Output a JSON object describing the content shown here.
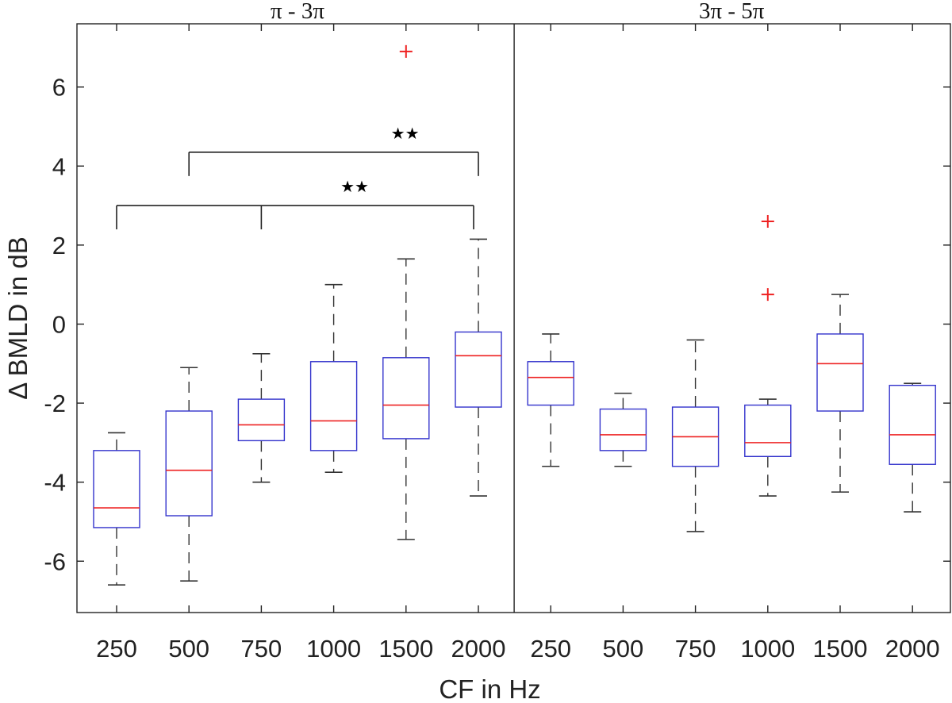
{
  "chart_data": {
    "type": "box",
    "xlabel": "CF in Hz",
    "ylabel": "Δ BMLD in dB",
    "ylim": [
      -7.3,
      7.6
    ],
    "yticks": [
      6,
      4,
      2,
      0,
      -2,
      -4,
      -6
    ],
    "ytick_labels": [
      "6",
      "4",
      "2",
      "0",
      "-2",
      "-4",
      "-6"
    ],
    "grid": false,
    "colors": {
      "box": "#3333cc",
      "median": "#ee2222",
      "whisker": "#333333",
      "outlier": "#ee2222",
      "axis": "#222222"
    },
    "groups": [
      {
        "title": "π - 3π",
        "categories": [
          "250",
          "500",
          "750",
          "1000",
          "1500",
          "2000"
        ],
        "boxes": [
          {
            "whisker_low": -6.6,
            "q1": -5.15,
            "median": -4.65,
            "q3": -3.2,
            "whisker_high": -2.75,
            "outliers": []
          },
          {
            "whisker_low": -6.5,
            "q1": -4.85,
            "median": -3.7,
            "q3": -2.2,
            "whisker_high": -1.1,
            "outliers": []
          },
          {
            "whisker_low": -4.0,
            "q1": -2.95,
            "median": -2.55,
            "q3": -1.9,
            "whisker_high": -0.75,
            "outliers": []
          },
          {
            "whisker_low": -3.75,
            "q1": -3.2,
            "median": -2.45,
            "q3": -0.95,
            "whisker_high": 1.0,
            "outliers": []
          },
          {
            "whisker_low": -5.45,
            "q1": -2.9,
            "median": -2.05,
            "q3": -0.85,
            "whisker_high": 1.65,
            "outliers": [
              6.9
            ]
          },
          {
            "whisker_low": -4.35,
            "q1": -2.1,
            "median": -0.8,
            "q3": -0.2,
            "whisker_high": 2.15,
            "outliers": []
          }
        ],
        "significance": [
          {
            "label": "★★",
            "from": "500",
            "to": "2000",
            "level": 4.35
          },
          {
            "label": "★★",
            "from": "250",
            "to": "2000",
            "via": "750",
            "level": 3.0
          }
        ]
      },
      {
        "title": "3π - 5π",
        "categories": [
          "250",
          "500",
          "750",
          "1000",
          "1500",
          "2000"
        ],
        "boxes": [
          {
            "whisker_low": -3.6,
            "q1": -2.05,
            "median": -1.35,
            "q3": -0.95,
            "whisker_high": -0.25,
            "outliers": []
          },
          {
            "whisker_low": -3.6,
            "q1": -3.2,
            "median": -2.8,
            "q3": -2.15,
            "whisker_high": -1.75,
            "outliers": []
          },
          {
            "whisker_low": -5.25,
            "q1": -3.6,
            "median": -2.85,
            "q3": -2.1,
            "whisker_high": -0.4,
            "outliers": []
          },
          {
            "whisker_low": -4.35,
            "q1": -3.35,
            "median": -3.0,
            "q3": -2.05,
            "whisker_high": -1.9,
            "outliers": [
              2.6,
              0.75
            ]
          },
          {
            "whisker_low": -4.25,
            "q1": -2.2,
            "median": -1.0,
            "q3": -0.25,
            "whisker_high": 0.75,
            "outliers": []
          },
          {
            "whisker_low": -4.75,
            "q1": -3.55,
            "median": -2.8,
            "q3": -1.55,
            "whisker_high": -1.5,
            "outliers": []
          }
        ],
        "significance": []
      }
    ]
  }
}
